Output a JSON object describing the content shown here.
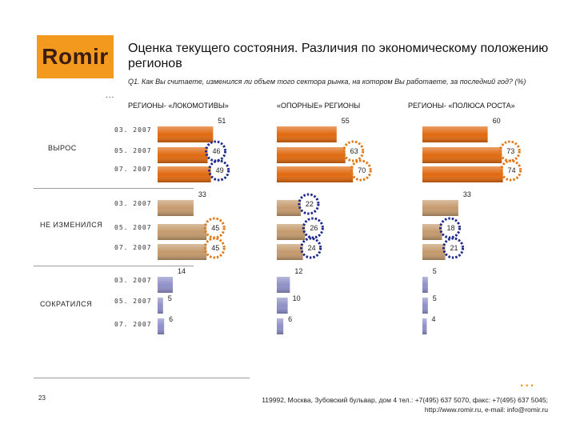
{
  "brand": {
    "logo_text": "Romir",
    "logo_dots": "...",
    "footer_dots": "..."
  },
  "title": "Оценка текущего состояния. Различия по экономическому положению регионов",
  "subtitle": "Q1. Как Вы считаете, изменился ли объем того сектора рынка, на котором Вы работаете, за последний год? (%)",
  "colors": {
    "grow": "#e06a10",
    "same": "#c49a6c",
    "decline": "#8f90c8",
    "orange_dot": "#e07b1a",
    "blue_dot": "#1f2a8c"
  },
  "chart_data": {
    "type": "bar",
    "orientation": "horizontal",
    "title": "Оценка текущего состояния. Различия по экономическому положению регионов",
    "units": "%",
    "columns": [
      "РЕГИОНЫ- «ЛОКОМОТИВЫ»",
      "«ОПОРНЫЕ» РЕГИОНЫ",
      "РЕГИОНЫ- «ПОЛЮСА РОСТА»"
    ],
    "periods": [
      "03. 2007",
      "05. 2007",
      "07. 2007"
    ],
    "groups": [
      {
        "name": "ВЫРОС",
        "values": [
          [
            51,
            46,
            49
          ],
          [
            55,
            63,
            70
          ],
          [
            60,
            73,
            74
          ]
        ],
        "highlight": [
          [
            null,
            "blue",
            "blue"
          ],
          [
            null,
            "orange",
            "orange"
          ],
          [
            null,
            "orange",
            "orange"
          ]
        ]
      },
      {
        "name": "НЕ ИЗМЕНИЛСЯ",
        "values": [
          [
            33,
            45,
            45
          ],
          [
            22,
            26,
            24
          ],
          [
            33,
            18,
            21
          ]
        ],
        "highlight": [
          [
            null,
            "orange",
            "orange"
          ],
          [
            "blue",
            "blue",
            "blue"
          ],
          [
            null,
            "blue",
            "blue"
          ]
        ]
      },
      {
        "name": "СОКРАТИЛСЯ",
        "values": [
          [
            14,
            5,
            6
          ],
          [
            12,
            10,
            6
          ],
          [
            5,
            5,
            4
          ]
        ],
        "highlight": [
          [
            null,
            null,
            null
          ],
          [
            null,
            null,
            null
          ],
          [
            null,
            null,
            null
          ]
        ]
      }
    ]
  },
  "footer": {
    "page": "23",
    "contact_line1": "119992, Москва, Зубовский бульвар, дом 4   тел.: +7(495) 637 5070, факс: +7(495) 637 5045;",
    "contact_line2": "http://www.romir.ru, e-mail: info@romir.ru"
  }
}
